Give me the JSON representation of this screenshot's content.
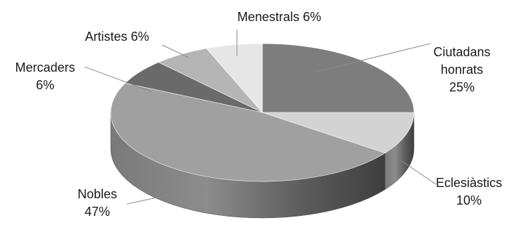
{
  "chart_data": {
    "type": "pie",
    "style": "3d",
    "slices": [
      {
        "name": "Ciutadans honrats",
        "value": 25,
        "color": "#7d7d7d",
        "label_lines": [
          "Ciutadans",
          "honrats",
          "25%"
        ]
      },
      {
        "name": "Eclesiàstics",
        "value": 10,
        "color": "#d3d3d3",
        "label_lines": [
          "Eclesiàstics",
          "10%"
        ]
      },
      {
        "name": "Nobles",
        "value": 47,
        "color": "#a0a0a0",
        "label_lines": [
          "Nobles",
          "47%"
        ]
      },
      {
        "name": "Mercaders",
        "value": 6,
        "color": "#6a6a6a",
        "label_lines": [
          "Mercaders",
          "6%"
        ]
      },
      {
        "name": "Artistes",
        "value": 6,
        "color": "#b5b5b5",
        "label_lines": [
          "Artistes 6%"
        ]
      },
      {
        "name": "Menestrals",
        "value": 6,
        "color": "#e6e6e6",
        "label_lines": [
          "Menestrals 6%"
        ]
      }
    ]
  }
}
